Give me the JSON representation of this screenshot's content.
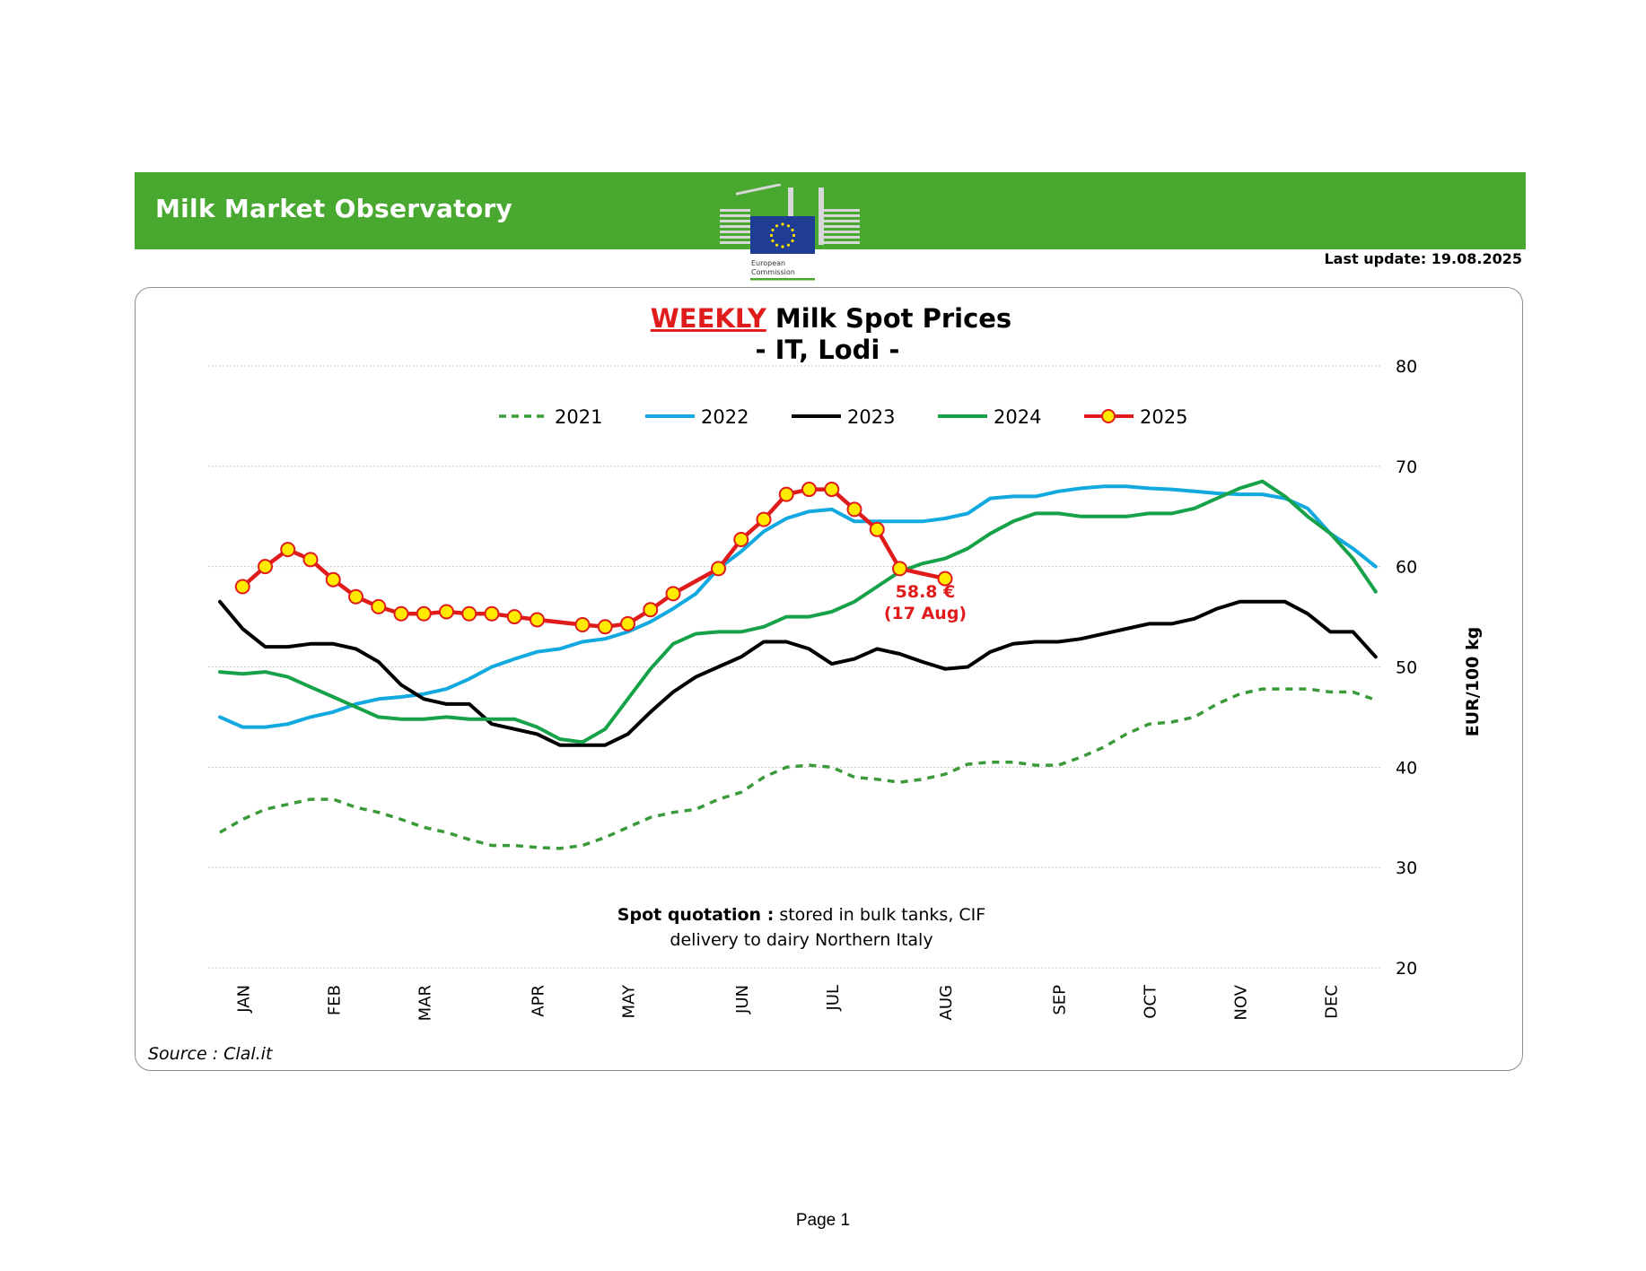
{
  "header": {
    "title": "Milk Market Observatory",
    "logo_text_line1": "European",
    "logo_text_line2": "Commission",
    "last_update": "Last update: 19.08.2025",
    "brand_color": "#48a830"
  },
  "footer": {
    "page": "Page 1"
  },
  "chart_data": {
    "type": "line",
    "title_highlight": "WEEKLY",
    "title_rest": " Milk Spot Prices",
    "subtitle": "- IT, Lodi -",
    "ylabel": "EUR/100 kg",
    "ylim": [
      20,
      80
    ],
    "yticks": [
      "80",
      "70",
      "60",
      "50",
      "40",
      "30",
      "20"
    ],
    "y_axis_side": "right",
    "grid": true,
    "legend_position": "top-center",
    "x_tick_labels": [
      "JAN",
      "FEB",
      "MAR",
      "APR",
      "MAY",
      "JUN",
      "JUL",
      "AUG",
      "SEP",
      "OCT",
      "NOV",
      "DEC"
    ],
    "x_tick_weeks": [
      2,
      6,
      10,
      15,
      19,
      24,
      28,
      33,
      38,
      42,
      46,
      50
    ],
    "note_bold": "Spot quotation :",
    "note_rest": " stored in bulk tanks, CIF",
    "note_line2": "delivery to dairy Northern Italy",
    "source": "Source : Clal.it",
    "annotation_value": "58.8 €",
    "annotation_date": "(17 Aug)",
    "series": [
      {
        "name": "2021",
        "color": "#3a9a3a",
        "dashed": true,
        "start_week": 1,
        "values": [
          33.5,
          34.8,
          35.8,
          36.3,
          36.8,
          36.8,
          36.0,
          35.5,
          34.8,
          34.0,
          33.5,
          32.8,
          32.2,
          32.2,
          32.0,
          31.9,
          32.2,
          33.0,
          34.0,
          35.0,
          35.5,
          35.8,
          36.8,
          37.5,
          39.0,
          40.0,
          40.2,
          40.0,
          39.0,
          38.8,
          38.5,
          38.8,
          39.3,
          40.3,
          40.5,
          40.5,
          40.2,
          40.2,
          41.0,
          42.0,
          43.3,
          44.3,
          44.5,
          45.0,
          46.3,
          47.3,
          47.8,
          47.8,
          47.8,
          47.5,
          47.5,
          46.7
        ]
      },
      {
        "name": "2022",
        "color": "#12a8e0",
        "dashed": false,
        "start_week": 1,
        "values": [
          45.0,
          44.0,
          44.0,
          44.3,
          45.0,
          45.5,
          46.3,
          46.8,
          47.0,
          47.3,
          47.8,
          48.8,
          50.0,
          50.8,
          51.5,
          51.8,
          52.5,
          52.8,
          53.5,
          54.5,
          55.8,
          57.3,
          59.8,
          61.5,
          63.5,
          64.8,
          65.5,
          65.7,
          64.5,
          64.5,
          64.5,
          64.5,
          64.8,
          65.3,
          66.8,
          67.0,
          67.0,
          67.5,
          67.8,
          68.0,
          68.0,
          67.8,
          67.7,
          67.5,
          67.3,
          67.2,
          67.2,
          66.8,
          65.8,
          63.3,
          61.8,
          60.0
        ]
      },
      {
        "name": "2023",
        "color": "#000000",
        "dashed": false,
        "start_week": 1,
        "values": [
          56.5,
          53.8,
          52.0,
          52.0,
          52.3,
          52.3,
          51.8,
          50.5,
          48.2,
          46.8,
          46.3,
          46.3,
          44.3,
          43.8,
          43.3,
          42.2,
          42.2,
          42.2,
          43.3,
          45.5,
          47.5,
          49.0,
          50.0,
          51.0,
          52.5,
          52.5,
          51.8,
          50.3,
          50.8,
          51.8,
          51.3,
          50.5,
          49.8,
          50.0,
          51.5,
          52.3,
          52.5,
          52.5,
          52.8,
          53.3,
          53.8,
          54.3,
          54.3,
          54.8,
          55.8,
          56.5,
          56.5,
          56.5,
          55.3,
          53.5,
          53.5,
          51.0
        ]
      },
      {
        "name": "2024",
        "color": "#17a24a",
        "dashed": false,
        "start_week": 1,
        "values": [
          49.5,
          49.3,
          49.5,
          49.0,
          48.0,
          47.0,
          46.0,
          45.0,
          44.8,
          44.8,
          45.0,
          44.8,
          44.8,
          44.8,
          44.0,
          42.8,
          42.5,
          43.8,
          46.8,
          49.8,
          52.3,
          53.3,
          53.5,
          53.5,
          54.0,
          55.0,
          55.0,
          55.5,
          56.5,
          58.0,
          59.5,
          60.3,
          60.8,
          61.8,
          63.3,
          64.5,
          65.3,
          65.3,
          65.0,
          65.0,
          65.0,
          65.3,
          65.3,
          65.8,
          66.8,
          67.8,
          68.5,
          67.0,
          65.0,
          63.3,
          60.8,
          57.5
        ]
      },
      {
        "name": "2025",
        "color": "#e01b1b",
        "marker_color": "#ffea00",
        "dashed": false,
        "markers": true,
        "start_week": 2,
        "values": [
          58.0,
          60.0,
          61.7,
          60.7,
          58.7,
          57.0,
          56.0,
          55.3,
          55.3,
          55.5,
          55.3,
          55.3,
          55.0,
          54.7,
          null,
          54.2,
          54.0,
          54.3,
          55.7,
          57.3,
          null,
          59.8,
          62.7,
          64.7,
          67.2,
          67.7,
          67.7,
          65.7,
          63.7,
          59.8,
          null,
          58.8
        ]
      }
    ]
  }
}
